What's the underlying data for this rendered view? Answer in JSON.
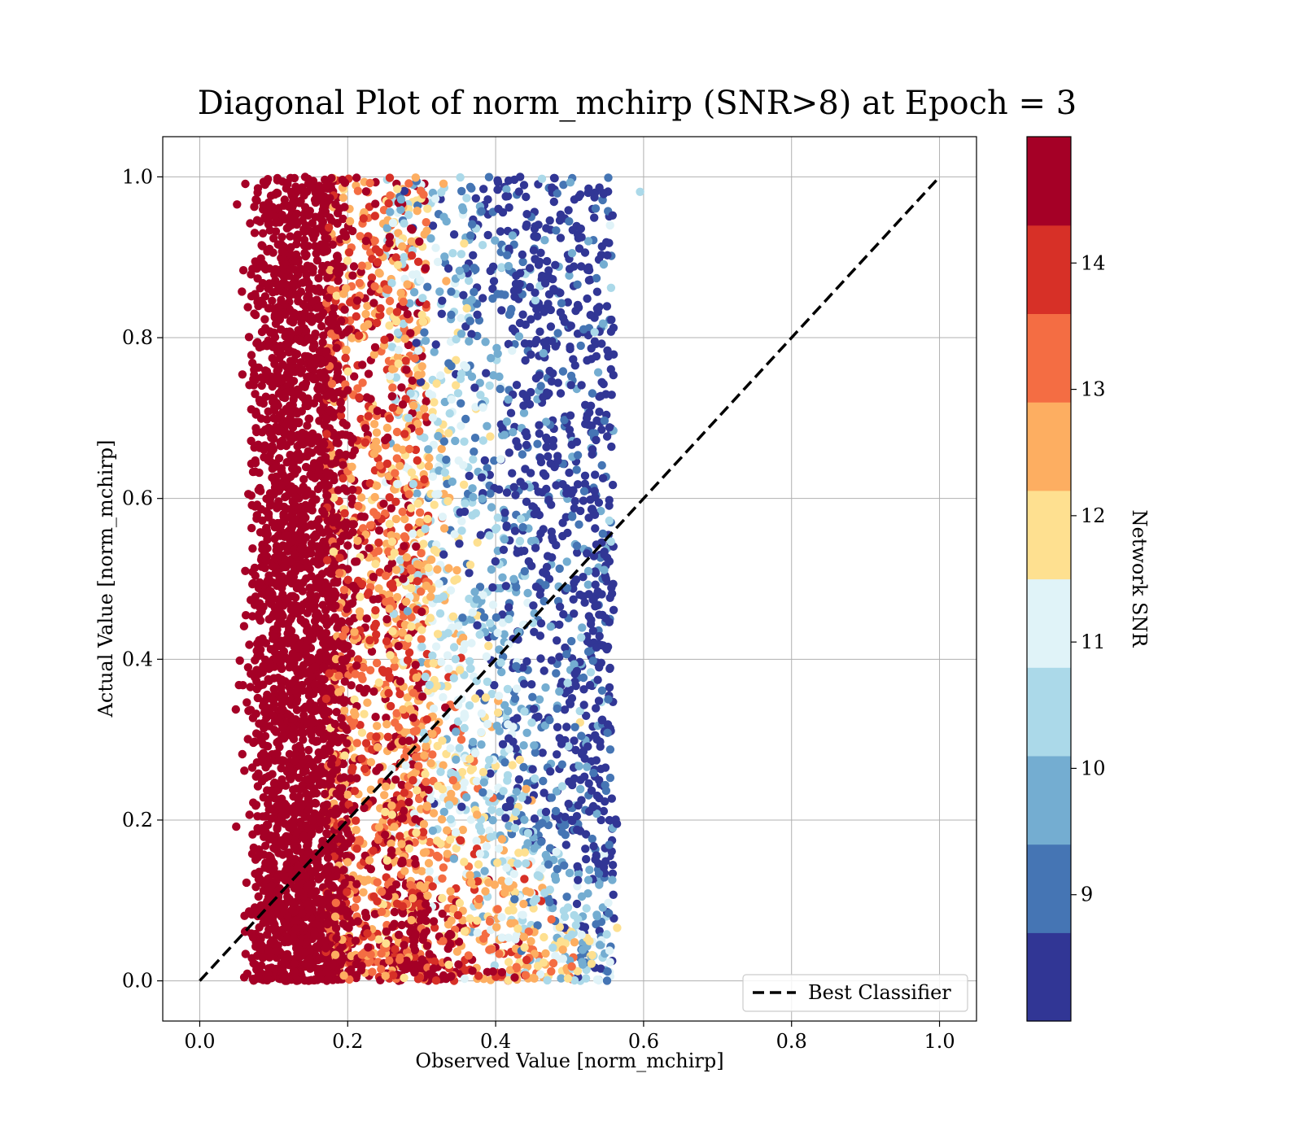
{
  "chart_data": {
    "type": "scatter",
    "title": "Diagonal Plot of norm_mchirp (SNR>8) at Epoch = 3",
    "xlabel": "Observed Value [norm_mchirp]",
    "ylabel": "Actual Value [norm_mchirp]",
    "xlim": [
      -0.05,
      1.05
    ],
    "ylim": [
      -0.05,
      1.05
    ],
    "xticks": [
      0.0,
      0.2,
      0.4,
      0.6,
      0.8,
      1.0
    ],
    "yticks": [
      0.0,
      0.2,
      0.4,
      0.6,
      0.8,
      1.0
    ],
    "x_tick_labels": [
      "0.0",
      "0.2",
      "0.4",
      "0.6",
      "0.8",
      "1.0"
    ],
    "y_tick_labels": [
      "0.0",
      "0.2",
      "0.4",
      "0.6",
      "0.8",
      "1.0"
    ],
    "grid": true,
    "reference_line": {
      "label": "Best Classifier",
      "style": "dashed",
      "color": "#000000",
      "x": [
        0.0,
        1.0
      ],
      "y": [
        0.0,
        1.0
      ]
    },
    "legend": {
      "location": "lower-right",
      "entries": [
        "Best Classifier"
      ]
    },
    "colorbar": {
      "label": "Network SNR",
      "colormap": "RdYlBu_r",
      "range": [
        8.0,
        15.0
      ],
      "levels": 10,
      "tick_values": [
        9,
        10,
        11,
        12,
        13,
        14
      ],
      "tick_labels": [
        "9",
        "10",
        "11",
        "12",
        "13",
        "14"
      ],
      "colors": [
        "#313695",
        "#4575b4",
        "#74add1",
        "#abd9e9",
        "#e0f3f8",
        "#fee090",
        "#fdae61",
        "#f46d43",
        "#d73027",
        "#a50026"
      ]
    },
    "point_density_regions": [
      {
        "snr_band": "high (>14)",
        "x_range": [
          0.05,
          0.2
        ],
        "y_range": [
          0.0,
          1.0
        ],
        "note_color": "#a50026"
      },
      {
        "snr_band": "mixed 11-14",
        "x_range": [
          0.2,
          0.35
        ],
        "y_range": [
          0.0,
          1.0
        ]
      },
      {
        "snr_band": "low (8-11)",
        "x_range": [
          0.35,
          0.6
        ],
        "y_range": [
          0.0,
          1.0
        ]
      }
    ]
  }
}
